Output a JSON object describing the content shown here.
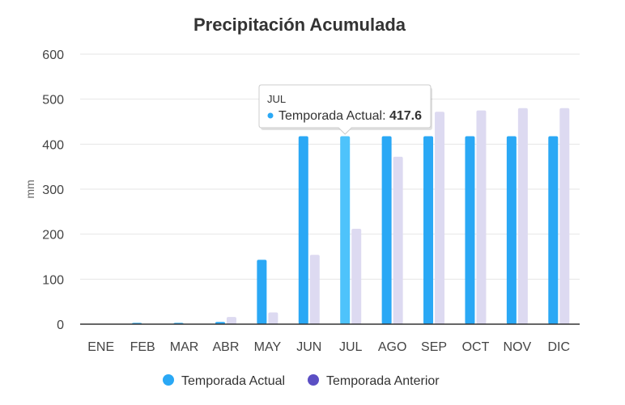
{
  "chart_data": {
    "type": "bar",
    "title": "Precipitación Acumulada",
    "ylabel": "mm",
    "xlabel": "",
    "ylim": [
      0,
      600
    ],
    "yticks": [
      0,
      100,
      200,
      300,
      400,
      500,
      600
    ],
    "grid": true,
    "legend_position": "bottom",
    "categories": [
      "ENE",
      "FEB",
      "MAR",
      "ABR",
      "MAY",
      "JUN",
      "JUL",
      "AGO",
      "SEP",
      "OCT",
      "NOV",
      "DIC"
    ],
    "series": [
      {
        "name": "Temporada Actual",
        "color": "#2aa8f5",
        "values": [
          1,
          3,
          3,
          5,
          143,
          417.6,
          417.6,
          417.6,
          417.6,
          417.6,
          417.6,
          417.6
        ]
      },
      {
        "name": "Temporada Anterior",
        "color": "#dddaf1",
        "legend_color": "#5b4fc4",
        "values": [
          0,
          1,
          1,
          16,
          26,
          154,
          212,
          372,
          472,
          475,
          480,
          480
        ]
      }
    ],
    "highlight": {
      "category_index": 6,
      "color": "#4ec3fb"
    },
    "tooltip": {
      "header": "JUL",
      "series_label": "Temporada Actual: ",
      "value": "417.6",
      "dot_color": "#2aa8f5"
    }
  }
}
